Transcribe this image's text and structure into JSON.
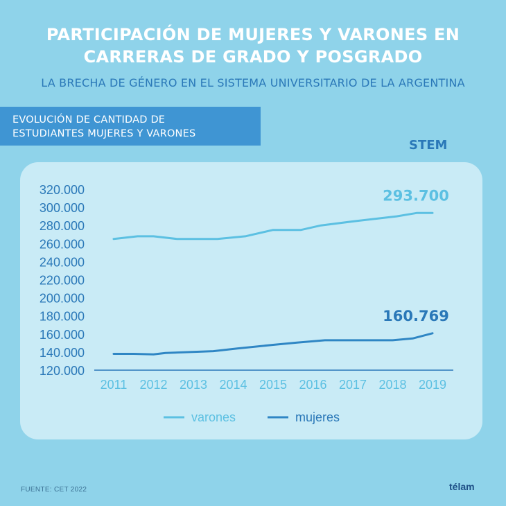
{
  "header": {
    "title_line1": "PARTICIPACIÓN DE MUJERES Y VARONES EN",
    "title_line2": "CARRERAS DE GRADO Y POSGRADO",
    "subtitle": "LA BRECHA DE GÉNERO EN EL SISTEMA UNIVERSITARIO DE LA ARGENTINA"
  },
  "section": {
    "line1": "EVOLUCIÓN DE CANTIDAD DE",
    "line2": "ESTUDIANTES MUJERES Y VARONES"
  },
  "category_label": "STEM",
  "footer": {
    "source": "FUENTE: CET 2022",
    "logo": "télam"
  },
  "chart_data": {
    "type": "line",
    "x": [
      "2011",
      "2012",
      "2013",
      "2014",
      "2015",
      "2016",
      "2017",
      "2018",
      "2019"
    ],
    "ylim": [
      120000,
      320000
    ],
    "y_ticks": [
      "320.000",
      "300.000",
      "280.000",
      "260.000",
      "240.000",
      "220.000",
      "200.000",
      "180.000",
      "160.000",
      "140.000",
      "120.000"
    ],
    "y_tick_values": [
      320000,
      300000,
      280000,
      260000,
      240000,
      220000,
      200000,
      180000,
      160000,
      140000,
      120000
    ],
    "grid": false,
    "legend_position": "bottom",
    "series": [
      {
        "name": "varones",
        "color": "#5cc0e2",
        "points": [
          [
            0,
            265000
          ],
          [
            0.6,
            268000
          ],
          [
            1,
            268000
          ],
          [
            1.6,
            265000
          ],
          [
            2.6,
            265000
          ],
          [
            3.3,
            268000
          ],
          [
            4.0,
            275000
          ],
          [
            4.7,
            275000
          ],
          [
            5.2,
            280000
          ],
          [
            6.1,
            285000
          ],
          [
            7.1,
            290000
          ],
          [
            7.6,
            293700
          ],
          [
            8.0,
            293700
          ]
        ],
        "end_label": "293.700",
        "end_label_color": "#5cc0e2"
      },
      {
        "name": "mujeres",
        "color": "#2f86c4",
        "points": [
          [
            0,
            138000
          ],
          [
            0.5,
            138000
          ],
          [
            1,
            137500
          ],
          [
            1.3,
            139000
          ],
          [
            2.5,
            141000
          ],
          [
            3.1,
            144000
          ],
          [
            4.0,
            148000
          ],
          [
            4.6,
            150500
          ],
          [
            5.3,
            153000
          ],
          [
            7.0,
            153000
          ],
          [
            7.5,
            155000
          ],
          [
            8.0,
            160769
          ]
        ],
        "end_label": "160.769",
        "end_label_color": "#2a78b8"
      }
    ]
  }
}
